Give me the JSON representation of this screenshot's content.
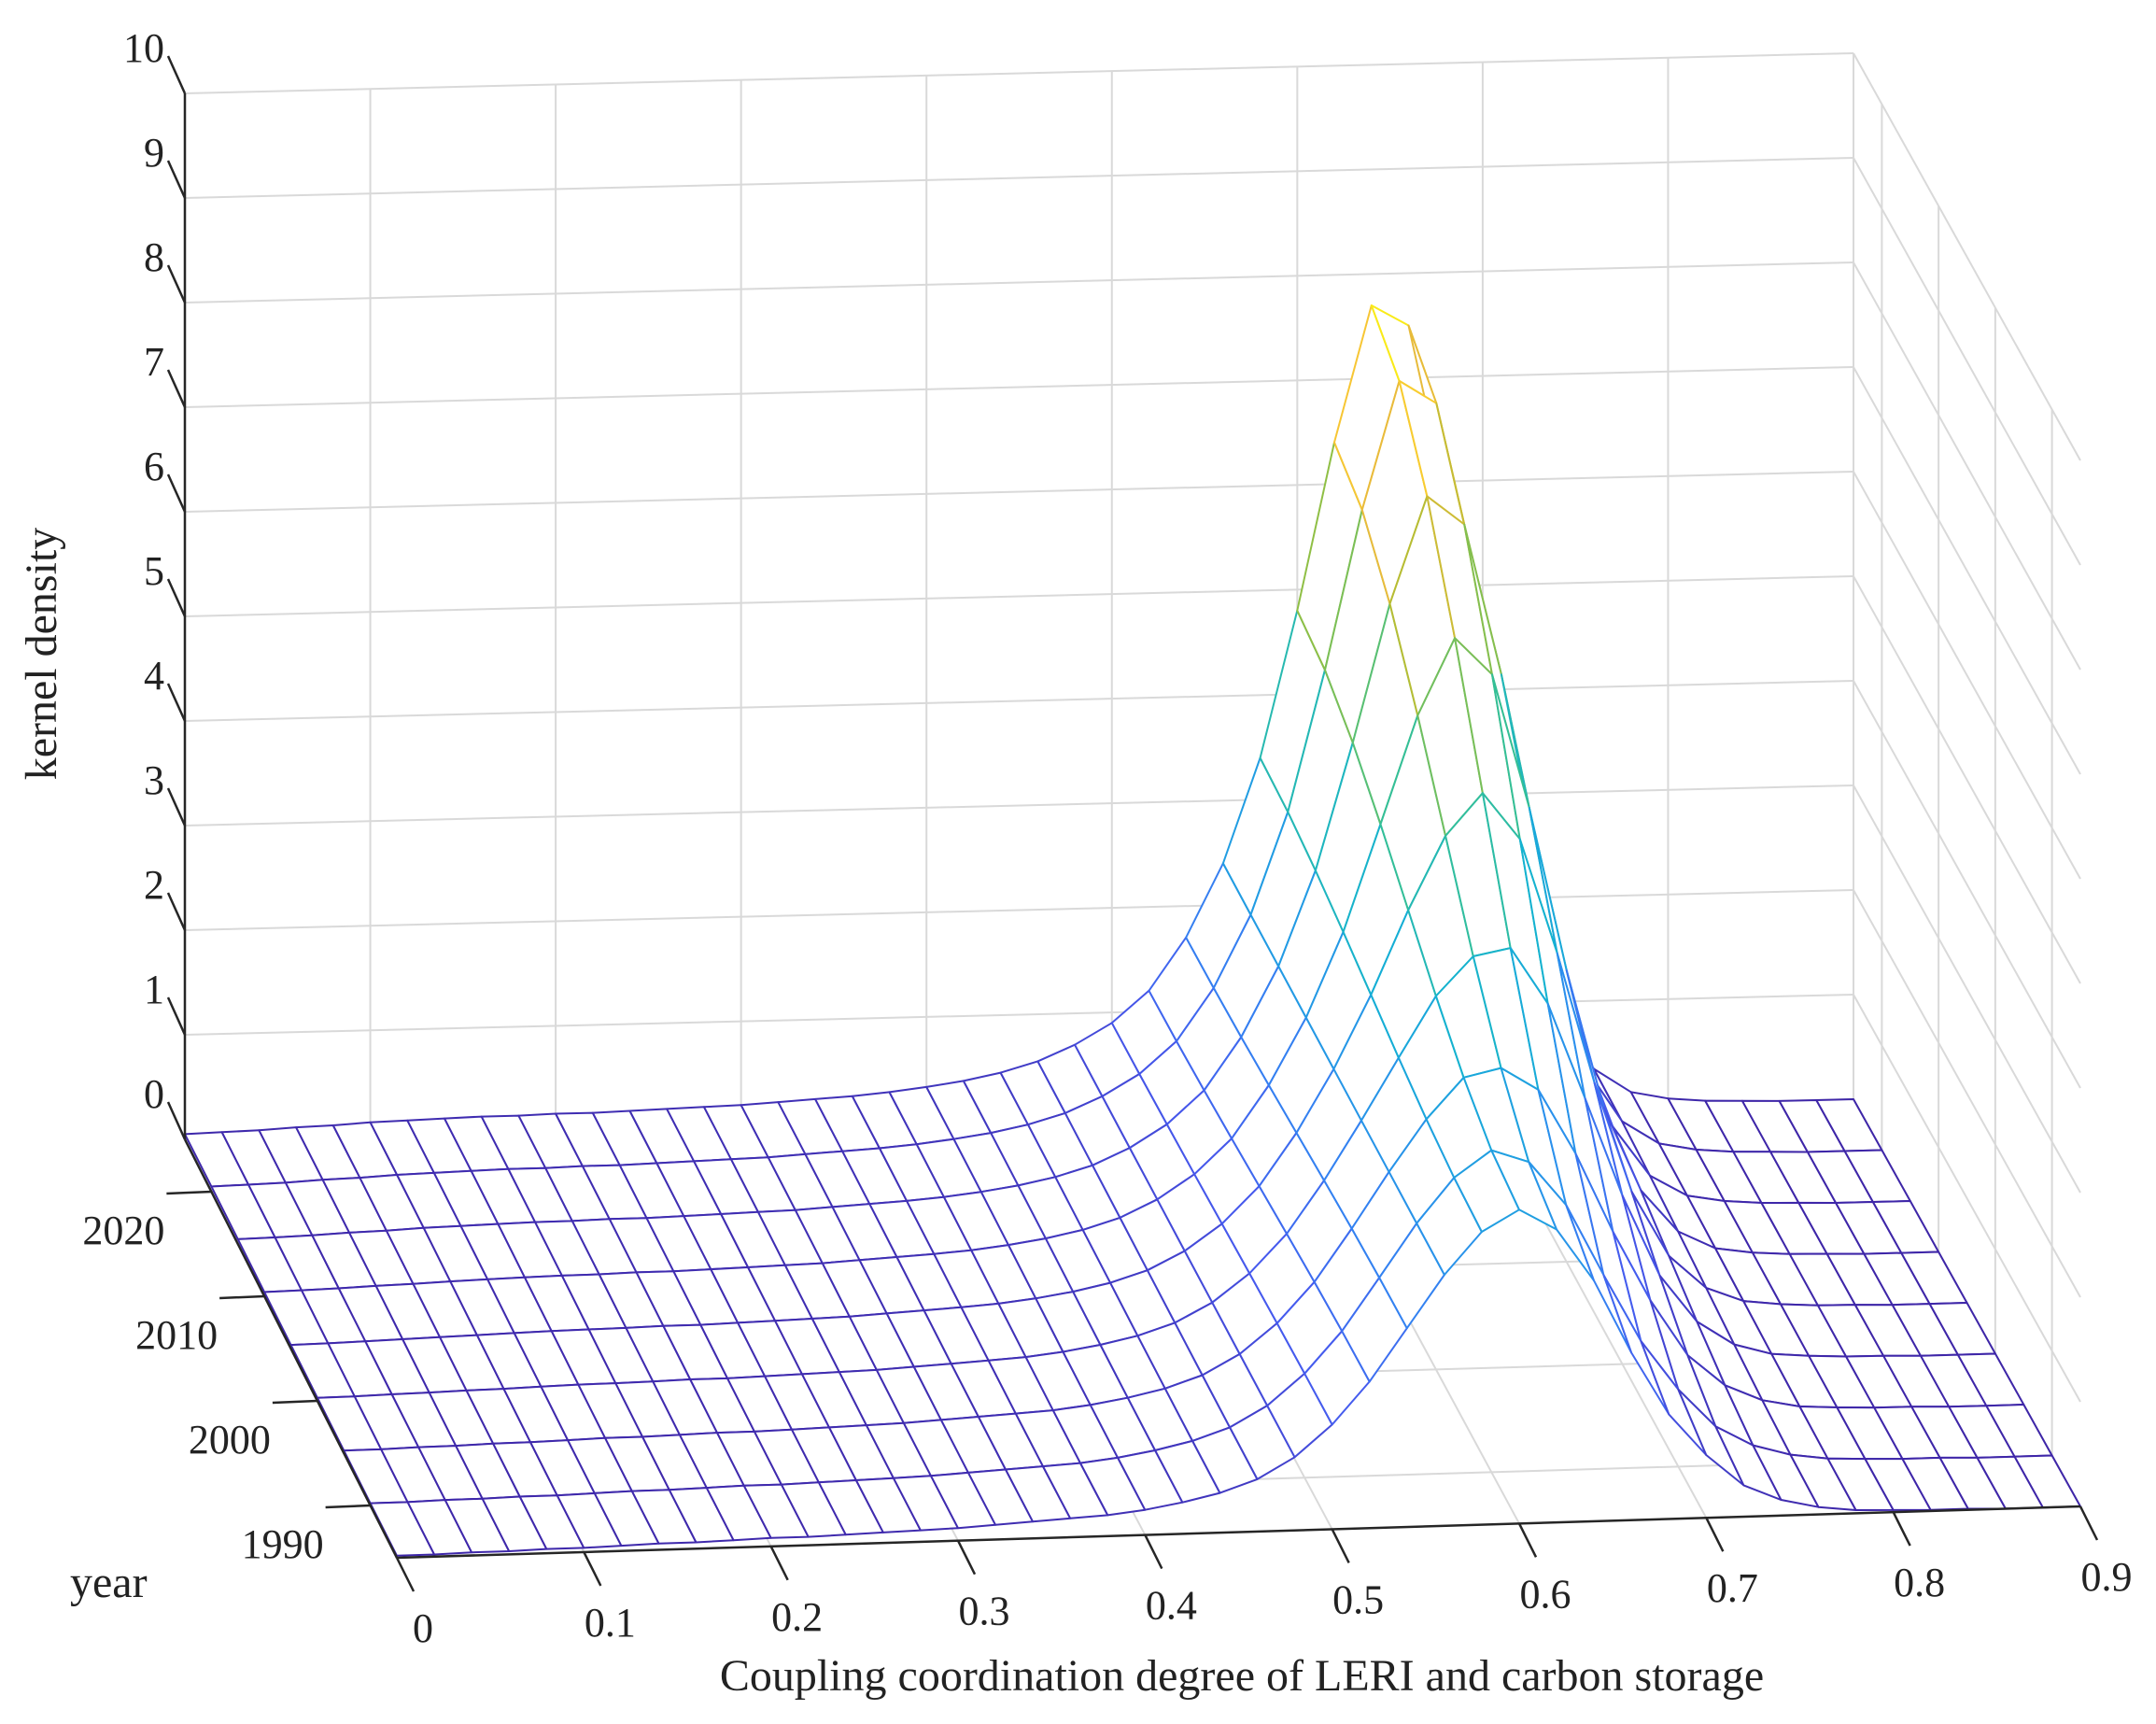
{
  "chart_data": {
    "type": "surface",
    "xlabel": "Coupling coordination degree of LERI and carbon storage",
    "ylabel": "year",
    "zlabel": "kernel density",
    "xlim": [
      0,
      0.9
    ],
    "ylim": [
      1985,
      2025
    ],
    "zlim": [
      0,
      10
    ],
    "x_ticks": [
      "0",
      "0.1",
      "0.2",
      "0.3",
      "0.4",
      "0.5",
      "0.6",
      "0.7",
      "0.8",
      "0.9"
    ],
    "y_ticks": [
      "1990",
      "2000",
      "2010",
      "2020"
    ],
    "z_ticks": [
      "0",
      "1",
      "2",
      "3",
      "4",
      "5",
      "6",
      "7",
      "8",
      "9",
      "10"
    ],
    "grid": true,
    "colormap": "parula",
    "years": [
      1985,
      1990,
      1995,
      2000,
      2005,
      2010,
      2015,
      2020,
      2025
    ],
    "x": [
      0,
      0.02,
      0.04,
      0.06,
      0.08,
      0.1,
      0.12,
      0.14,
      0.16,
      0.18,
      0.2,
      0.22,
      0.24,
      0.26,
      0.28,
      0.3,
      0.32,
      0.34,
      0.36,
      0.38,
      0.4,
      0.42,
      0.44,
      0.46,
      0.48,
      0.5,
      0.52,
      0.54,
      0.56,
      0.58,
      0.6,
      0.62,
      0.64,
      0.66,
      0.68,
      0.7,
      0.72,
      0.74,
      0.76,
      0.78,
      0.8,
      0.82,
      0.84,
      0.86,
      0.88,
      0.9
    ],
    "density_1985": [
      0.02,
      0.02,
      0.03,
      0.03,
      0.04,
      0.04,
      0.05,
      0.06,
      0.06,
      0.07,
      0.08,
      0.08,
      0.09,
      0.1,
      0.11,
      0.12,
      0.14,
      0.16,
      0.18,
      0.2,
      0.24,
      0.3,
      0.38,
      0.5,
      0.7,
      1.0,
      1.4,
      1.9,
      2.4,
      2.8,
      3.0,
      2.8,
      2.3,
      1.6,
      1.0,
      0.6,
      0.3,
      0.15,
      0.07,
      0.03,
      0.02,
      0.01,
      0.01,
      0.0,
      0.0,
      0.0
    ],
    "density_2025": [
      0.05,
      0.06,
      0.07,
      0.09,
      0.1,
      0.12,
      0.13,
      0.14,
      0.15,
      0.15,
      0.16,
      0.16,
      0.17,
      0.18,
      0.19,
      0.2,
      0.22,
      0.24,
      0.26,
      0.29,
      0.33,
      0.38,
      0.45,
      0.55,
      0.7,
      0.9,
      1.2,
      1.7,
      2.4,
      3.4,
      4.8,
      6.4,
      7.7,
      7.5,
      5.9,
      3.8,
      2.0,
      0.9,
      0.35,
      0.12,
      0.05,
      0.02,
      0.01,
      0.0,
      0.0,
      0.0
    ]
  }
}
